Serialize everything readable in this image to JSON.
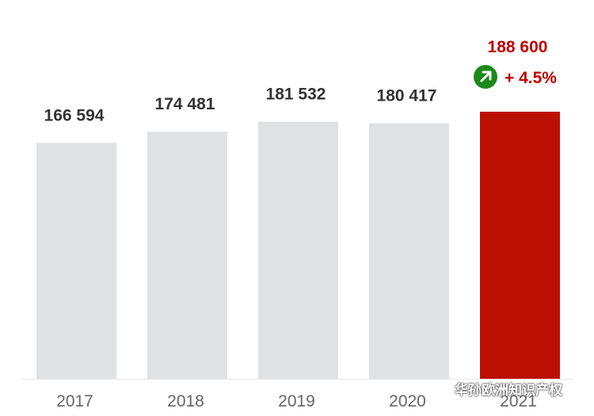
{
  "chart_data": {
    "type": "bar",
    "categories": [
      "2017",
      "2018",
      "2019",
      "2020",
      "2021"
    ],
    "values": [
      166594,
      174481,
      181532,
      180417,
      188600
    ],
    "value_labels": [
      "166 594",
      "174 481",
      "181 532",
      "180 417",
      "188 600"
    ],
    "highlight_index": 4,
    "change_label": "+ 4.5%",
    "change_icon": "arrow-up-right-icon",
    "ylim": [
      0,
      188600
    ],
    "grid": false,
    "colors": {
      "bar": "#dfe1e5",
      "highlight_bar": "#bd1004",
      "highlight_text": "#c00000",
      "label_text": "#333333",
      "tick_text": "#666666",
      "change_badge": "#1a8a1a"
    }
  },
  "watermark": {
    "text": "华孙欧洲知识产权",
    "icon": "wechat-icon"
  }
}
